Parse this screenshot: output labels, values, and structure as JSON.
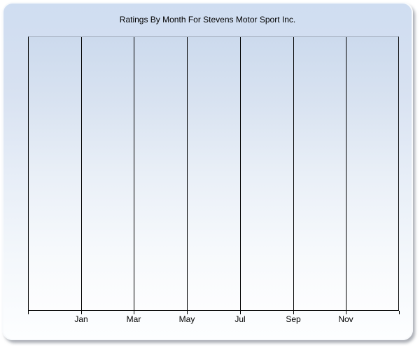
{
  "page": {
    "background_color": "#ffffff"
  },
  "panel": {
    "gradient_top_color": "#cfddf1",
    "gradient_bottom_color": "#fdfeff",
    "border_color": "#f8fafc",
    "shadow_color": "#686e7a"
  },
  "axes": {
    "gridline_color": "#000000",
    "axis_line_color": "#000000",
    "plot_top_border_color": "#a4aebe",
    "label_color": "#000000",
    "title_color": "#000000"
  },
  "chart_data": {
    "type": "line",
    "title": "Ratings By Month For Stevens Motor Sport Inc.",
    "x_tick_labels": [
      "Jan",
      "Mar",
      "May",
      "Jul",
      "Sep",
      "Nov"
    ],
    "series": [],
    "plot_is_empty": true,
    "x_gridline_count": 8,
    "x_label_interval_gridlines": "labels centered on interior gridlines",
    "grid": "vertical major gridlines only",
    "y_axis_tick_labels": "none visible",
    "legend": "none",
    "plot_background": "top-bottom gradient light blue to white"
  }
}
